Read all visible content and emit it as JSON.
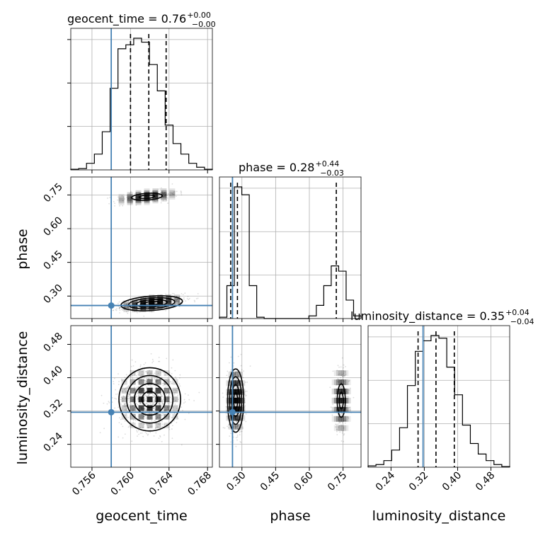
{
  "chart_data": {
    "type": "corner",
    "parameters": [
      {
        "key": "geocent_time",
        "label": "geocent_time",
        "title": "geocent_time = 0.76",
        "title_plus": "+0.00",
        "title_minus": "−0.00",
        "range": [
          0.7538,
          0.7685
        ],
        "ticks": [
          0.756,
          0.76,
          0.764,
          0.768
        ],
        "tick_labels": [
          "0.756",
          "0.760",
          "0.764",
          "0.768"
        ],
        "truth": 0.758,
        "quantiles": [
          0.76,
          0.7619,
          0.7637
        ],
        "hist": [
          0.005,
          0.01,
          0.05,
          0.12,
          0.29,
          0.62,
          0.92,
          0.95,
          1.0,
          0.97,
          0.8,
          0.6,
          0.34,
          0.2,
          0.12,
          0.05,
          0.02,
          0.005
        ]
      },
      {
        "key": "phase",
        "label": "phase",
        "title": "phase = 0.28",
        "title_plus": "+0.44",
        "title_minus": "−0.03",
        "range": [
          0.2,
          0.83
        ],
        "ticks": [
          0.3,
          0.45,
          0.6,
          0.75
        ],
        "tick_labels": [
          "0.30",
          "0.45",
          "0.60",
          "0.75"
        ],
        "truth": 0.258,
        "quantiles": [
          0.25,
          0.28,
          0.72
        ],
        "hist": [
          0.01,
          0.25,
          1.0,
          0.94,
          0.25,
          0.01,
          0,
          0,
          0,
          0,
          0,
          0,
          0.02,
          0.1,
          0.25,
          0.4,
          0.36,
          0.14,
          0.02
        ]
      },
      {
        "key": "luminosity_distance",
        "label": "luminosity_distance",
        "title": "luminosity_distance = 0.35",
        "title_plus": "+0.04",
        "title_minus": "−0.04",
        "range": [
          0.185,
          0.525
        ],
        "ticks": [
          0.24,
          0.32,
          0.4,
          0.48
        ],
        "tick_labels": [
          "0.24",
          "0.32",
          "0.40",
          "0.48"
        ],
        "truth": 0.317,
        "quantiles": [
          0.305,
          0.348,
          0.392
        ],
        "hist": [
          0.01,
          0.02,
          0.05,
          0.13,
          0.3,
          0.62,
          0.88,
          0.96,
          1.0,
          0.98,
          0.76,
          0.55,
          0.32,
          0.18,
          0.1,
          0.05,
          0.02,
          0.005
        ]
      }
    ],
    "pairs": [
      {
        "x": "geocent_time",
        "y": "phase",
        "clusters": [
          {
            "cx": 0.7622,
            "cy": 0.268,
            "sx": 0.0016,
            "sy": 0.016,
            "rho": 0.5,
            "weight": 0.75
          },
          {
            "cx": 0.7617,
            "cy": 0.742,
            "sx": 0.0016,
            "sy": 0.015,
            "rho": 0.5,
            "weight": 0.25
          }
        ]
      },
      {
        "x": "geocent_time",
        "y": "luminosity_distance",
        "clusters": [
          {
            "cx": 0.762,
            "cy": 0.348,
            "sx": 0.0016,
            "sy": 0.038,
            "rho": 0.0,
            "weight": 1.0
          }
        ]
      },
      {
        "x": "phase",
        "y": "luminosity_distance",
        "clusters": [
          {
            "cx": 0.272,
            "cy": 0.345,
            "sx": 0.018,
            "sy": 0.038,
            "rho": 0.0,
            "weight": 0.75
          },
          {
            "cx": 0.742,
            "cy": 0.345,
            "sx": 0.018,
            "sy": 0.04,
            "rho": 0.0,
            "weight": 0.25
          }
        ]
      }
    ],
    "contour_levels": [
      0.5,
      1.0,
      1.5,
      2.0
    ],
    "grid": true,
    "truth_color": "#4682b4",
    "contour_color": "#000000",
    "point_color": "#000000"
  }
}
